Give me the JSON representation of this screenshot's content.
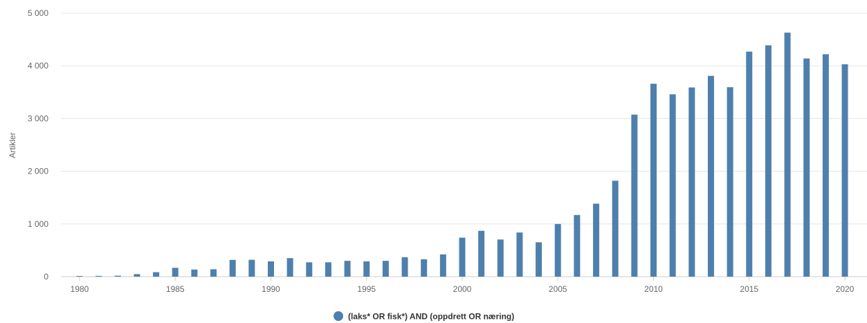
{
  "chart_data": {
    "type": "bar",
    "title": "",
    "xlabel": "",
    "ylabel": "Artikler",
    "ylim": [
      0,
      5000
    ],
    "yticks": [
      0,
      1000,
      2000,
      3000,
      4000,
      5000
    ],
    "ytick_labels": [
      "0",
      "1 000",
      "2 000",
      "3 000",
      "4 000",
      "5 000"
    ],
    "xticks": [
      1980,
      1985,
      1990,
      1995,
      2000,
      2005,
      2010,
      2015,
      2020
    ],
    "xtick_labels": [
      "1980",
      "1985",
      "1990",
      "1995",
      "2000",
      "2005",
      "2010",
      "2015",
      "2020"
    ],
    "grid": true,
    "legend_position": "bottom-center",
    "categories": [
      1980,
      1981,
      1982,
      1983,
      1984,
      1985,
      1986,
      1987,
      1988,
      1989,
      1990,
      1991,
      1992,
      1993,
      1994,
      1995,
      1996,
      1997,
      1998,
      1999,
      2000,
      2001,
      2002,
      2003,
      2004,
      2005,
      2006,
      2007,
      2008,
      2009,
      2010,
      2011,
      2012,
      2013,
      2014,
      2015,
      2016,
      2017,
      2018,
      2019,
      2020
    ],
    "series": [
      {
        "name": "(laks* OR fisk*) AND (oppdrett OR næring)",
        "color": "#4e80ad",
        "values": [
          12,
          15,
          18,
          48,
          85,
          168,
          135,
          140,
          318,
          320,
          290,
          352,
          272,
          272,
          300,
          290,
          300,
          368,
          330,
          422,
          740,
          870,
          705,
          838,
          652,
          1000,
          1170,
          1385,
          1820,
          3075,
          3660,
          3460,
          3590,
          3810,
          3595,
          4270,
          4390,
          4630,
          4140,
          4220,
          4030
        ]
      }
    ]
  }
}
